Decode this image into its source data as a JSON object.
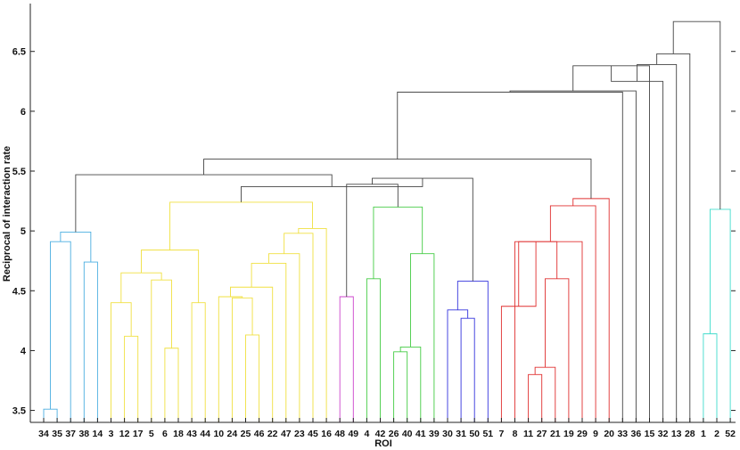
{
  "chart_data": {
    "type": "dendrogram",
    "xlabel": "ROI",
    "ylabel": "Reciprocal of interaction rate",
    "ylim": [
      3.4,
      6.9
    ],
    "yticks": [
      "3.5",
      "4",
      "4.5",
      "5",
      "5.5",
      "6",
      "6.5"
    ],
    "leaf_order": [
      "34",
      "35",
      "37",
      "38",
      "14",
      "3",
      "12",
      "17",
      "5",
      "6",
      "18",
      "43",
      "44",
      "10",
      "24",
      "25",
      "46",
      "22",
      "47",
      "23",
      "45",
      "16",
      "48",
      "49",
      "4",
      "42",
      "26",
      "40",
      "41",
      "39",
      "30",
      "31",
      "50",
      "51",
      "7",
      "8",
      "11",
      "27",
      "21",
      "19",
      "29",
      "9",
      "20",
      "33",
      "36",
      "15",
      "32",
      "13",
      "28",
      "1",
      "2",
      "52"
    ],
    "cluster_colors": {
      "cyan_blue": "#4aaee0",
      "yellow": "#f0e040",
      "magenta": "#cc44cc",
      "green": "#44cc44",
      "blue": "#3333dd",
      "red": "#e03030",
      "teal": "#40dccc",
      "grey": "#444444"
    },
    "merges": [
      {
        "a": "34",
        "b": "35",
        "height": 3.51,
        "color": "cyan_blue"
      },
      {
        "a": "m0",
        "b": "37",
        "height": 4.91,
        "color": "cyan_blue"
      },
      {
        "a": "38",
        "b": "14",
        "height": 4.74,
        "color": "cyan_blue"
      },
      {
        "a": "m1",
        "b": "m2",
        "height": 4.99,
        "color": "cyan_blue"
      },
      {
        "a": "12",
        "b": "17",
        "height": 4.12,
        "color": "yellow"
      },
      {
        "a": "3",
        "b": "m4",
        "height": 4.4,
        "color": "yellow"
      },
      {
        "a": "6",
        "b": "18",
        "height": 4.02,
        "color": "yellow"
      },
      {
        "a": "5",
        "b": "m6",
        "height": 4.59,
        "color": "yellow"
      },
      {
        "a": "m5",
        "b": "m7",
        "height": 4.65,
        "color": "yellow"
      },
      {
        "a": "43",
        "b": "44",
        "height": 4.4,
        "color": "yellow"
      },
      {
        "a": "m8",
        "b": "m9",
        "height": 4.84,
        "color": "yellow"
      },
      {
        "a": "25",
        "b": "46",
        "height": 4.13,
        "color": "yellow"
      },
      {
        "a": "24",
        "b": "m11",
        "height": 4.44,
        "color": "yellow"
      },
      {
        "a": "10",
        "b": "m12",
        "height": 4.45,
        "color": "yellow"
      },
      {
        "a": "m13",
        "b": "22",
        "height": 4.53,
        "color": "yellow"
      },
      {
        "a": "m14",
        "b": "47",
        "height": 4.73,
        "color": "yellow"
      },
      {
        "a": "m15",
        "b": "23",
        "height": 4.81,
        "color": "yellow"
      },
      {
        "a": "m16",
        "b": "45",
        "height": 4.98,
        "color": "yellow"
      },
      {
        "a": "m17",
        "b": "16",
        "height": 5.02,
        "color": "yellow"
      },
      {
        "a": "m10",
        "b": "m18",
        "height": 5.24,
        "color": "yellow"
      },
      {
        "a": "48",
        "b": "49",
        "height": 4.45,
        "color": "magenta"
      },
      {
        "a": "4",
        "b": "42",
        "height": 4.6,
        "color": "green"
      },
      {
        "a": "26",
        "b": "40",
        "height": 3.99,
        "color": "green"
      },
      {
        "a": "m22",
        "b": "41",
        "height": 4.03,
        "color": "green"
      },
      {
        "a": "m23",
        "b": "39",
        "height": 4.81,
        "color": "green"
      },
      {
        "a": "m21",
        "b": "m24",
        "height": 5.2,
        "color": "green"
      },
      {
        "a": "m20",
        "b": "m25",
        "height": 5.39,
        "color": "grey"
      },
      {
        "a": "31",
        "b": "50",
        "height": 4.27,
        "color": "blue"
      },
      {
        "a": "30",
        "b": "m27",
        "height": 4.34,
        "color": "blue"
      },
      {
        "a": "m28",
        "b": "51",
        "height": 4.58,
        "color": "blue"
      },
      {
        "a": "m26",
        "b": "m29",
        "height": 5.44,
        "color": "grey"
      },
      {
        "a": "m19",
        "b": "m30",
        "height": 5.37,
        "color": "grey"
      },
      {
        "a": "m3",
        "b": "m31",
        "height": 5.47,
        "color": "grey"
      },
      {
        "a": "11",
        "b": "27",
        "height": 3.8,
        "color": "red"
      },
      {
        "a": "m33",
        "b": "21",
        "height": 3.86,
        "color": "red"
      },
      {
        "a": "m34",
        "b": "19",
        "height": 4.6,
        "color": "red"
      },
      {
        "a": "8",
        "b": "m35",
        "height": 4.91,
        "color": "red"
      },
      {
        "a": "7",
        "b": "m36",
        "height": 4.37,
        "color": "red"
      },
      {
        "a": "m37",
        "b": "29",
        "height": 4.91,
        "color": "red"
      },
      {
        "a": "m38",
        "b": "9",
        "height": 5.21,
        "color": "red"
      },
      {
        "a": "m39",
        "b": "20",
        "height": 5.27,
        "color": "red"
      },
      {
        "a": "m32",
        "b": "m40",
        "height": 5.6,
        "color": "grey"
      },
      {
        "a": "m41",
        "b": "33",
        "height": 6.16,
        "color": "grey"
      },
      {
        "a": "m42",
        "b": "36",
        "height": 6.17,
        "color": "grey"
      },
      {
        "a": "m43",
        "b": "15",
        "height": 6.38,
        "color": "grey"
      },
      {
        "a": "m44",
        "b": "32",
        "height": 6.25,
        "color": "grey"
      },
      {
        "a": "m45",
        "b": "13",
        "height": 6.39,
        "color": "grey"
      },
      {
        "a": "m46",
        "b": "28",
        "height": 6.48,
        "color": "grey"
      },
      {
        "a": "1",
        "b": "2",
        "height": 4.14,
        "color": "teal"
      },
      {
        "a": "m48",
        "b": "52",
        "height": 5.18,
        "color": "teal"
      },
      {
        "a": "m47",
        "b": "m49",
        "height": 6.75,
        "color": "grey"
      }
    ]
  }
}
